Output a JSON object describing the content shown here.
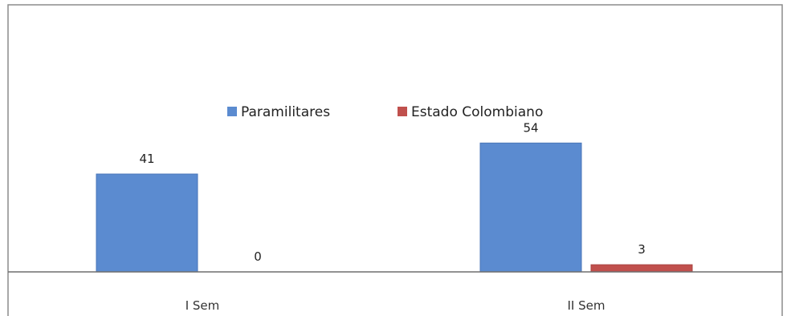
{
  "chart_data": {
    "type": "bar",
    "categories": [
      "I Sem",
      "II Sem"
    ],
    "series": [
      {
        "name": "Paramilitares",
        "color": "#5b8bd0",
        "values": [
          41,
          54
        ]
      },
      {
        "name": "Estado Colombiano",
        "color": "#c0504d",
        "values": [
          0,
          3
        ]
      }
    ],
    "data_labels": [
      [
        "41",
        "54"
      ],
      [
        "0",
        "3"
      ]
    ],
    "ylim": [
      0,
      60
    ],
    "grid": false,
    "legend": "top-center"
  }
}
